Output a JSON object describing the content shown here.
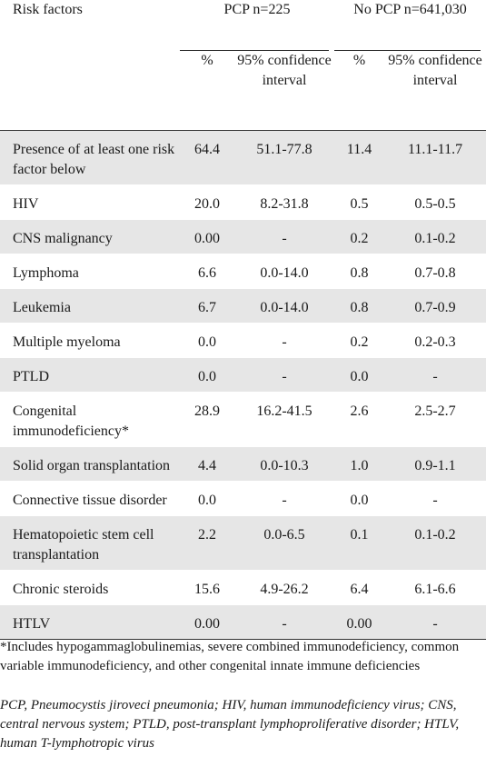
{
  "table": {
    "header": {
      "risk_factors": "Risk factors",
      "group1": "PCP  n=225",
      "group2": "No PCP  n=641,030",
      "pct": "%",
      "ci": "95% confidence interval"
    },
    "rows": [
      {
        "factor": "Presence of at least one risk factor below",
        "pcp_pct": "64.4",
        "pcp_ci": "51.1-77.8",
        "nopcp_pct": "11.4",
        "nopcp_ci": "11.1-11.7"
      },
      {
        "factor": "HIV",
        "pcp_pct": "20.0",
        "pcp_ci": "8.2-31.8",
        "nopcp_pct": "0.5",
        "nopcp_ci": "0.5-0.5"
      },
      {
        "factor": "CNS malignancy",
        "pcp_pct": "0.00",
        "pcp_ci": "-",
        "nopcp_pct": "0.2",
        "nopcp_ci": "0.1-0.2"
      },
      {
        "factor": "Lymphoma",
        "pcp_pct": "6.6",
        "pcp_ci": "0.0-14.0",
        "nopcp_pct": "0.8",
        "nopcp_ci": "0.7-0.8"
      },
      {
        "factor": "Leukemia",
        "pcp_pct": "6.7",
        "pcp_ci": "0.0-14.0",
        "nopcp_pct": "0.8",
        "nopcp_ci": "0.7-0.9"
      },
      {
        "factor": "Multiple myeloma",
        "pcp_pct": "0.0",
        "pcp_ci": "-",
        "nopcp_pct": "0.2",
        "nopcp_ci": "0.2-0.3"
      },
      {
        "factor": "PTLD",
        "pcp_pct": "0.0",
        "pcp_ci": "-",
        "nopcp_pct": "0.0",
        "nopcp_ci": "-"
      },
      {
        "factor": "Congenital immunodeficiency*",
        "pcp_pct": "28.9",
        "pcp_ci": "16.2-41.5",
        "nopcp_pct": "2.6",
        "nopcp_ci": "2.5-2.7"
      },
      {
        "factor": "Solid organ transplantation",
        "pcp_pct": "4.4",
        "pcp_ci": "0.0-10.3",
        "nopcp_pct": "1.0",
        "nopcp_ci": "0.9-1.1"
      },
      {
        "factor": "Connective tissue disorder",
        "pcp_pct": "0.0",
        "pcp_ci": "-",
        "nopcp_pct": "0.0",
        "nopcp_ci": "-"
      },
      {
        "factor": "Hematopoietic stem cell transplantation",
        "pcp_pct": "2.2",
        "pcp_ci": "0.0-6.5",
        "nopcp_pct": "0.1",
        "nopcp_ci": "0.1-0.2"
      },
      {
        "factor": "Chronic steroids",
        "pcp_pct": "15.6",
        "pcp_ci": "4.9-26.2",
        "nopcp_pct": "6.4",
        "nopcp_ci": "6.1-6.6"
      },
      {
        "factor": "HTLV",
        "pcp_pct": "0.00",
        "pcp_ci": "-",
        "nopcp_pct": "0.00",
        "nopcp_ci": "-"
      }
    ]
  },
  "footnotes": {
    "asterisk": "*Includes hypogammaglobulinemias, severe combined immunodeficiency, common variable immunodeficiency, and other congenital innate immune deficiencies",
    "abbreviations": "PCP, Pneumocystis jiroveci pneumonia; HIV, human immunodeficiency virus; CNS, central nervous system; PTLD, post-transplant lymphoproliferative disorder; HTLV, human T-lymphotropic virus"
  },
  "colors": {
    "stripe": "#e6e6e6",
    "rule": "#333333"
  }
}
